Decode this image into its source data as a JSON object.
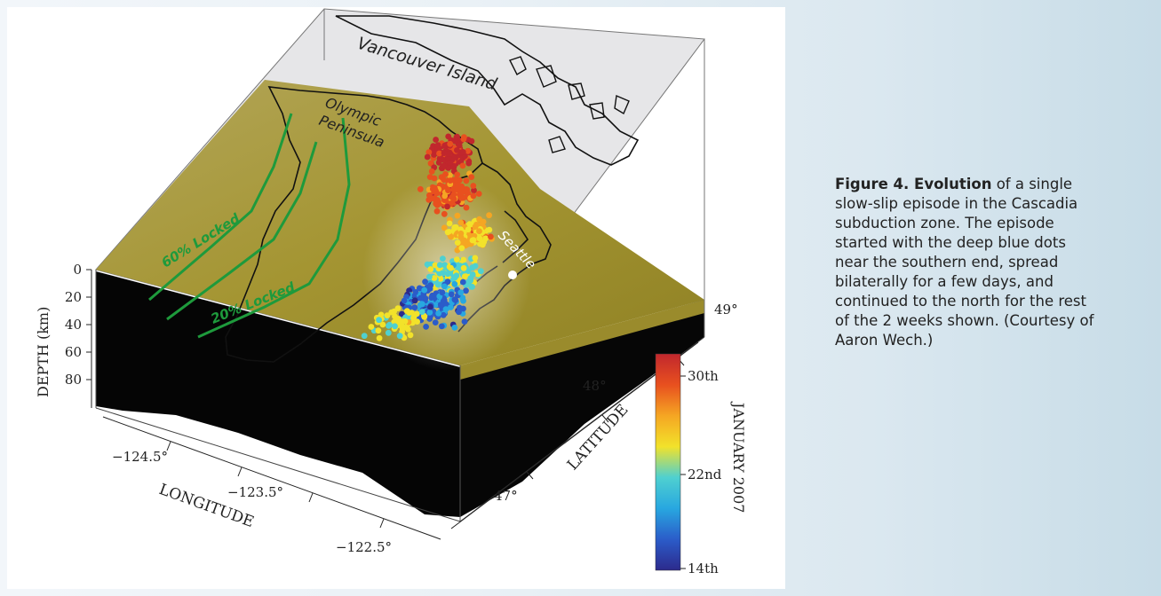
{
  "figure": {
    "map_labels": {
      "vancouver_island": "Vancouver Island",
      "olympic_line1": "Olympic",
      "olympic_line2": "Peninsula",
      "seattle": "Seattle",
      "locked_60": "60% Locked",
      "locked_20": "20% Locked"
    },
    "depth_axis": {
      "label": "DEPTH (km)",
      "ticks": [
        "0",
        "20",
        "40",
        "60",
        "80"
      ]
    },
    "longitude_axis": {
      "label": "LONGITUDE",
      "ticks": [
        "−124.5°",
        "−123.5°",
        "−122.5°"
      ]
    },
    "latitude_axis": {
      "label": "LATITUDE",
      "ticks": [
        "47°",
        "48°",
        "49°"
      ]
    },
    "colorbar": {
      "label": "JANUARY 2007",
      "ticks": [
        "30th",
        "22nd",
        "14th"
      ],
      "gradient_colors": [
        "#2c2a8c",
        "#2b5cc9",
        "#28a7e0",
        "#4fd0d0",
        "#f2e22a",
        "#f5a623",
        "#e8501f",
        "#c1272d"
      ]
    },
    "colors": {
      "surface": "#a89a3c",
      "box_top": "#e9e9ea",
      "locked_contours": "#1e9a3c",
      "seattle_marker": "#ffffff"
    }
  },
  "caption": {
    "bold_part": "Figure 4. Evolution",
    "text_part": " of a single slow-slip episode in the Cascadia subduction zone. The episode started with the deep blue dots near the southern end, spread bilaterally for a few days, and continued to the north for the rest of the 2 weeks shown. (Courtesy of Aaron Wech.)"
  }
}
